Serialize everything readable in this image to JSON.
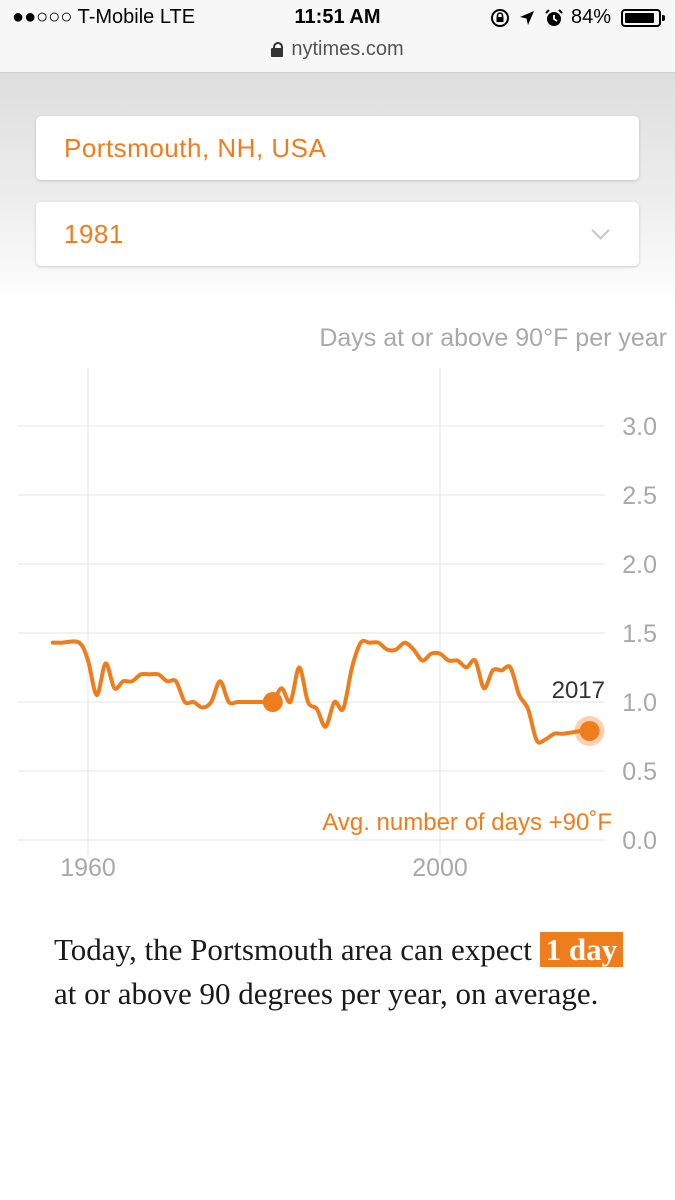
{
  "status_bar": {
    "carrier": "●●○○○ T-Mobile  LTE",
    "time": "11:51 AM",
    "icons": [
      "rotation-lock-icon",
      "location-arrow-icon",
      "alarm-icon"
    ],
    "battery": "84%",
    "url": "nytimes.com"
  },
  "controls": {
    "city": "Portsmouth, NH, USA",
    "year": "1981"
  },
  "chart_data": {
    "type": "line",
    "title": "Days at or above 90°F per year",
    "series_label": "Avg. number of days +90˚F",
    "end_label": "2017",
    "x_ticks": [
      1960,
      2000
    ],
    "x_tick_labels": [
      "1960",
      "2000"
    ],
    "y_ticks": [
      0.0,
      0.5,
      1.0,
      1.5,
      2.0,
      2.5,
      3.0
    ],
    "y_tick_labels": [
      "0.0",
      "0.5",
      "1.0",
      "1.5",
      "2.0",
      "2.5",
      "3.0"
    ],
    "xlim": [
      1956,
      2020
    ],
    "ylim": [
      0,
      3.1
    ],
    "grid": true,
    "color": "#f07d1d",
    "highlight_point": {
      "x": 1981,
      "y": 1.0
    },
    "end_point": {
      "x": 2017,
      "y": 0.79
    },
    "x": [
      1956,
      1957,
      1959,
      1960,
      1961,
      1962,
      1963,
      1964,
      1965,
      1966,
      1967,
      1968,
      1969,
      1970,
      1971,
      1972,
      1973,
      1974,
      1975,
      1976,
      1977,
      1978,
      1979,
      1980,
      1981,
      1982,
      1983,
      1984,
      1985,
      1986,
      1987,
      1988,
      1989,
      1990,
      1991,
      1992,
      1993,
      1994,
      1995,
      1996,
      1997,
      1998,
      1999,
      2000,
      2001,
      2002,
      2003,
      2004,
      2005,
      2006,
      2007,
      2008,
      2009,
      2010,
      2011,
      2012,
      2013,
      2014,
      2015,
      2016,
      2017
    ],
    "y": [
      1.43,
      1.43,
      1.43,
      1.3,
      1.05,
      1.28,
      1.1,
      1.15,
      1.15,
      1.2,
      1.2,
      1.2,
      1.15,
      1.15,
      1.0,
      1.0,
      0.96,
      1.0,
      1.15,
      1.0,
      1.0,
      1.0,
      1.0,
      1.0,
      1.0,
      1.1,
      1.0,
      1.25,
      1.0,
      0.95,
      0.82,
      1.0,
      0.95,
      1.25,
      1.43,
      1.43,
      1.43,
      1.38,
      1.38,
      1.43,
      1.38,
      1.3,
      1.35,
      1.35,
      1.3,
      1.3,
      1.25,
      1.3,
      1.1,
      1.23,
      1.23,
      1.25,
      1.05,
      0.95,
      0.72,
      0.73,
      0.77,
      0.77,
      0.78,
      0.79,
      0.79
    ]
  }
}
